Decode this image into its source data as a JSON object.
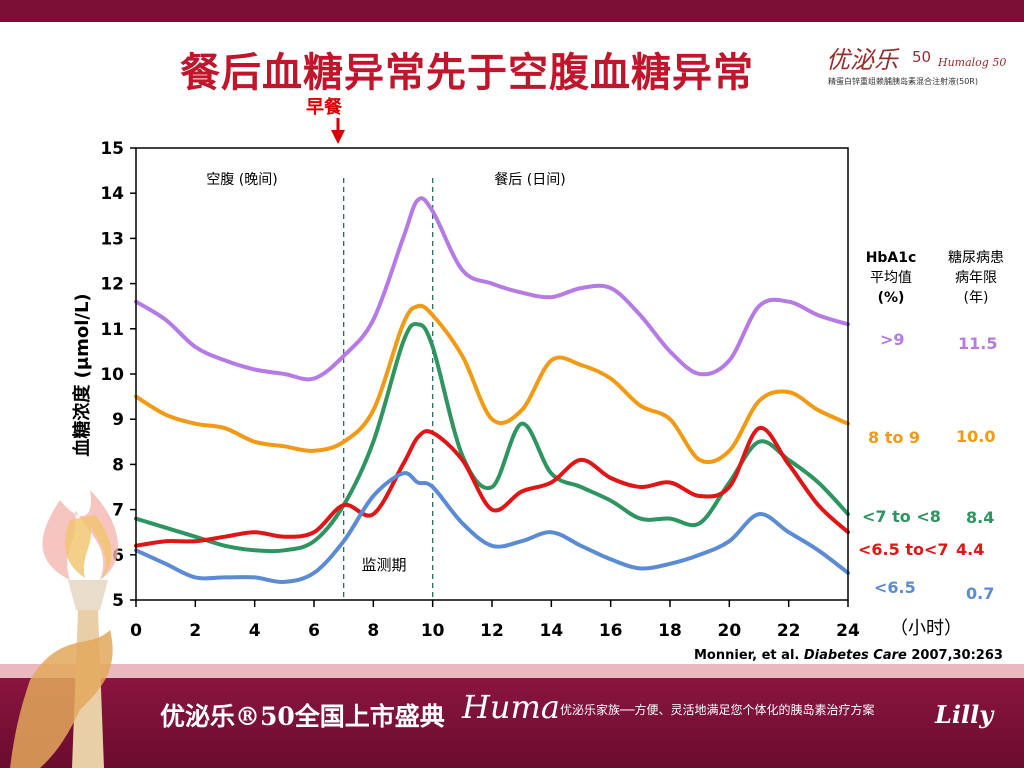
{
  "title": "餐后血糖异常先于空腹血糖异常",
  "brand": {
    "logo_text": "优泌乐",
    "logo_number": "50",
    "logo_script": "Humalog 50",
    "subtitle": "精蛋白锌重组赖脯胰岛素混合注射液(50R)"
  },
  "breakfast_label": "早餐",
  "table_header": {
    "hba1c": [
      "HbA1c",
      "平均值",
      "(%)"
    ],
    "duration": [
      "糖尿病患",
      "病年限",
      "(年)"
    ]
  },
  "hours_label": "（小时）",
  "citation": {
    "authors": "Monnier, et al.",
    "journal": "Diabetes Care",
    "detail": "2007,30:263"
  },
  "banner": {
    "title": "优泌乐®50全国上市盛典",
    "huma": "Huma",
    "tagline": "优泌乐家族──方便、灵活地满足您个体化的胰岛素治疗方案",
    "lilly": "Lilly"
  },
  "chart_data": {
    "type": "line",
    "xlabel": "",
    "ylabel": "血糖浓度 (μmol/L)",
    "xlim": [
      0,
      24
    ],
    "ylim": [
      5,
      15
    ],
    "xticks": [
      0,
      2,
      4,
      6,
      8,
      10,
      12,
      14,
      16,
      18,
      20,
      22,
      24
    ],
    "yticks": [
      5,
      6,
      7,
      8,
      9,
      10,
      11,
      12,
      13,
      14,
      15
    ],
    "annotations": {
      "fasting": "空腹 (晚间)",
      "postprandial": "餐后 (日间)",
      "monitoring": "监测期"
    },
    "vlines": [
      7,
      10
    ],
    "x": [
      0,
      1,
      2,
      3,
      4,
      5,
      6,
      7,
      8,
      9,
      9.5,
      10,
      11,
      12,
      13,
      14,
      15,
      16,
      17,
      18,
      19,
      20,
      21,
      22,
      23,
      24
    ],
    "series": [
      {
        "name": ">9",
        "hba1c": ">9",
        "duration": "11.5",
        "color": "#b57ae6",
        "values": [
          11.6,
          11.2,
          10.6,
          10.3,
          10.1,
          10.0,
          9.9,
          10.4,
          11.2,
          13.0,
          13.85,
          13.6,
          12.3,
          12.0,
          11.8,
          11.7,
          11.9,
          11.9,
          11.3,
          10.5,
          10.0,
          10.3,
          11.5,
          11.6,
          11.3,
          11.1
        ]
      },
      {
        "name": "8 to 9",
        "hba1c": "8 to 9",
        "duration": "10.0",
        "color": "#f29a13",
        "values": [
          9.5,
          9.1,
          8.9,
          8.8,
          8.5,
          8.4,
          8.3,
          8.5,
          9.2,
          11.1,
          11.5,
          11.3,
          10.4,
          9.0,
          9.2,
          10.3,
          10.2,
          9.9,
          9.3,
          9.0,
          8.1,
          8.3,
          9.4,
          9.6,
          9.2,
          8.9
        ]
      },
      {
        "name": "<7 to <8",
        "hba1c": "<7 to <8",
        "duration": "8.4",
        "color": "#2e9460",
        "values": [
          6.8,
          6.6,
          6.4,
          6.2,
          6.1,
          6.1,
          6.3,
          7.1,
          8.5,
          10.7,
          11.1,
          10.6,
          8.2,
          7.5,
          8.9,
          7.8,
          7.5,
          7.2,
          6.8,
          6.8,
          6.7,
          7.6,
          8.5,
          8.1,
          7.6,
          6.9
        ]
      },
      {
        "name": "<6.5 to<7",
        "hba1c": "<6.5 to<7",
        "duration": "4.4",
        "color": "#e01515",
        "values": [
          6.2,
          6.3,
          6.3,
          6.4,
          6.5,
          6.4,
          6.5,
          7.1,
          6.9,
          8.0,
          8.6,
          8.7,
          8.1,
          7.0,
          7.4,
          7.6,
          8.1,
          7.7,
          7.5,
          7.6,
          7.3,
          7.5,
          8.8,
          8.0,
          7.1,
          6.5
        ]
      },
      {
        "name": "<6.5",
        "hba1c": "<6.5",
        "duration": "0.7",
        "color": "#5b8bd4",
        "values": [
          6.1,
          5.8,
          5.5,
          5.5,
          5.5,
          5.4,
          5.6,
          6.3,
          7.3,
          7.8,
          7.6,
          7.5,
          6.7,
          6.2,
          6.3,
          6.5,
          6.2,
          5.9,
          5.7,
          5.8,
          6.0,
          6.3,
          6.9,
          6.5,
          6.1,
          5.6
        ]
      }
    ]
  }
}
